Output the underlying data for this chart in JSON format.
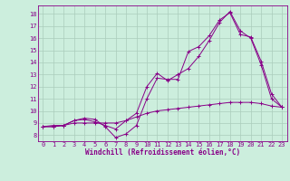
{
  "xlabel": "Windchill (Refroidissement éolien,°C)",
  "bg_color": "#cceedd",
  "grid_color": "#aaccbb",
  "line_color": "#880088",
  "xlim": [
    -0.5,
    23.5
  ],
  "ylim": [
    7.5,
    18.7
  ],
  "xticks": [
    0,
    1,
    2,
    3,
    4,
    5,
    6,
    7,
    8,
    9,
    10,
    11,
    12,
    13,
    14,
    15,
    16,
    17,
    18,
    19,
    20,
    21,
    22,
    23
  ],
  "yticks": [
    8,
    9,
    10,
    11,
    12,
    13,
    14,
    15,
    16,
    17,
    18
  ],
  "series": [
    [
      8.7,
      8.8,
      8.8,
      9.2,
      9.4,
      9.3,
      8.7,
      7.8,
      8.1,
      8.8,
      11.0,
      12.7,
      12.6,
      12.6,
      14.9,
      15.3,
      16.2,
      17.5,
      18.1,
      16.3,
      16.1,
      14.1,
      11.4,
      10.3
    ],
    [
      8.7,
      8.7,
      8.8,
      9.2,
      9.3,
      9.1,
      8.8,
      8.5,
      9.2,
      9.8,
      12.0,
      13.1,
      12.5,
      13.0,
      13.5,
      14.5,
      15.8,
      17.3,
      18.2,
      16.6,
      16.0,
      13.8,
      11.0,
      10.3
    ],
    [
      8.7,
      8.7,
      8.8,
      9.0,
      9.0,
      9.0,
      9.0,
      9.0,
      9.2,
      9.5,
      9.8,
      10.0,
      10.1,
      10.2,
      10.3,
      10.4,
      10.5,
      10.6,
      10.7,
      10.7,
      10.7,
      10.6,
      10.4,
      10.3
    ]
  ],
  "tick_fontsize": 5.0,
  "label_fontsize": 5.5
}
